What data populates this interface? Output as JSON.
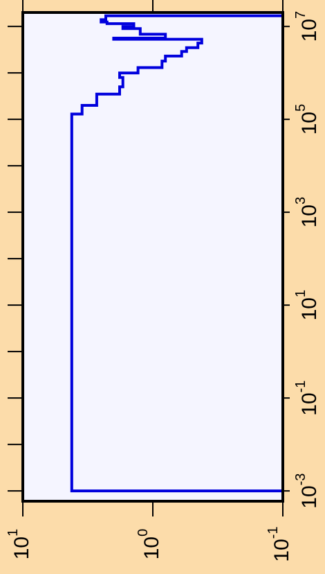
{
  "colors": {
    "background": "#fcdcaa",
    "plot_area": "#f5f5ff",
    "series": "#0000dd",
    "axis": "#000000"
  },
  "chart_data": {
    "type": "line",
    "orientation": "rotated-90",
    "x_scale": "log",
    "y_scale": "log",
    "xlim": [
      0.0006,
      20000000
    ],
    "ylim": [
      0.1,
      10
    ],
    "x_ticks": [
      {
        "value": 0.001,
        "base": "10",
        "exp": "-3"
      },
      {
        "value": 0.1,
        "base": "10",
        "exp": "-1"
      },
      {
        "value": 10,
        "base": "10",
        "exp": "1"
      },
      {
        "value": 1000,
        "base": "10",
        "exp": "3"
      },
      {
        "value": 100000,
        "base": "10",
        "exp": "5"
      },
      {
        "value": 10000000,
        "base": "10",
        "exp": "7"
      }
    ],
    "x_minor_ticks": [
      0.01,
      1,
      100,
      10000,
      1000000
    ],
    "y_ticks": [
      {
        "value": 10,
        "base": "10",
        "exp": "1"
      },
      {
        "value": 1,
        "base": "10",
        "exp": "0"
      },
      {
        "value": 0.1,
        "base": "10",
        "exp": "-1"
      }
    ],
    "series": [
      {
        "step": true,
        "points": [
          [
            0.001,
            0.1
          ],
          [
            0.001,
            4.2
          ],
          [
            100000,
            4.2
          ],
          [
            130000,
            3.5
          ],
          [
            200000,
            2.7
          ],
          [
            350000,
            1.8
          ],
          [
            500000,
            1.7
          ],
          [
            800000,
            1.8
          ],
          [
            1000000,
            1.3
          ],
          [
            1300000,
            0.85
          ],
          [
            1800000,
            0.8
          ],
          [
            2300000,
            0.6
          ],
          [
            2900000,
            0.55
          ],
          [
            3500000,
            0.45
          ],
          [
            4400000,
            0.42
          ],
          [
            5300000,
            2.0
          ],
          [
            5600000,
            0.8
          ],
          [
            6800000,
            1.25
          ],
          [
            9000000,
            1.7
          ],
          [
            10000000,
            1.4
          ],
          [
            11500000,
            2.25
          ],
          [
            12500000,
            2.5
          ],
          [
            14000000,
            2.3
          ],
          [
            17000000,
            0.1
          ]
        ]
      }
    ]
  }
}
